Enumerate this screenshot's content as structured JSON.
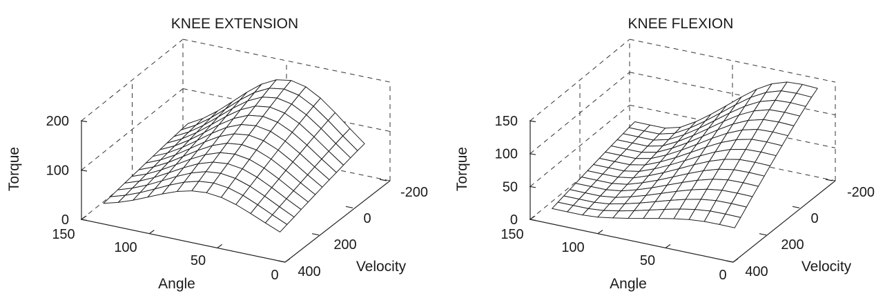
{
  "chart_data": [
    {
      "type": "surface",
      "title": "KNEE EXTENSION",
      "xlabel": "Angle",
      "ylabel": "Velocity",
      "zlabel": "Torque",
      "x_ticks": [
        "150",
        "100",
        "50",
        "0"
      ],
      "y_ticks": [
        "-200",
        "0",
        "200",
        "400"
      ],
      "z_ticks": [
        "200",
        "100",
        "0"
      ],
      "xlim": [
        0,
        150
      ],
      "ylim": [
        -200,
        400
      ],
      "zlim": [
        0,
        200
      ],
      "grid": true,
      "mesh": {
        "angle_range": [
          10,
          140
        ],
        "velocity_range": [
          -150,
          350
        ],
        "rows": 12,
        "cols": 12,
        "peak_torque": 180,
        "peak_angle": 65,
        "peak_velocity": -150,
        "torque_at_max_velocity": 90
      }
    },
    {
      "type": "surface",
      "title": "KNEE FLEXION",
      "xlabel": "Angle",
      "ylabel": "Velocity",
      "zlabel": "Torque",
      "x_ticks": [
        "150",
        "100",
        "50",
        "0"
      ],
      "y_ticks": [
        "-200",
        "0",
        "200",
        "400"
      ],
      "z_ticks": [
        "150",
        "100",
        "50",
        "0"
      ],
      "xlim": [
        0,
        150
      ],
      "ylim": [
        -200,
        400
      ],
      "zlim": [
        0,
        150
      ],
      "grid": true,
      "mesh": {
        "angle_range": [
          5,
          140
        ],
        "velocity_range": [
          -150,
          350
        ],
        "rows": 14,
        "cols": 12,
        "peak_torque": 150,
        "peak_angle": 20,
        "peak_velocity": -150,
        "torque_at_max_velocity": 40
      }
    }
  ]
}
